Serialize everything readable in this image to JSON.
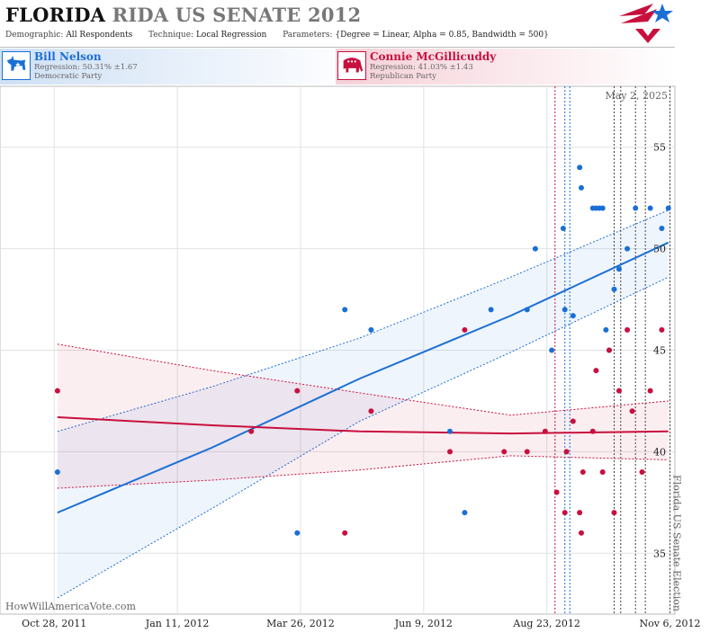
{
  "header": {
    "title_state": "FLORIDA",
    "title_rest": "RIDA US SENATE 2012",
    "demographic_label": "Demographic:",
    "demographic_value": "All Respondents",
    "technique_label": "Technique:",
    "technique_value": "Local Regression",
    "parameters_label": "Parameters:",
    "parameters_value": "{Degree = Linear, Alpha = 0.85, Bandwidth = 500}"
  },
  "candidates": {
    "dem": {
      "name": "Bill Nelson",
      "regression": "Regression: 50.31% ±1.67",
      "party": "Democratic Party",
      "color": "#1a6fd6"
    },
    "rep": {
      "name": "Connie McGillicuddy",
      "regression": "Regression: 41.03% ±1.43",
      "party": "Republican Party",
      "color": "#c8103e"
    }
  },
  "watermark": "HowWillAmericaVote.com",
  "chart_data": {
    "type": "scatter",
    "x_is_date": true,
    "xlim": [
      "2011-09-25",
      "2012-11-09"
    ],
    "ylim": [
      32,
      58
    ],
    "y_ticks": [
      35,
      40,
      45,
      50,
      55
    ],
    "x_ticks": [
      {
        "date": "2011-10-28",
        "label": "Oct 28, 2011"
      },
      {
        "date": "2012-01-11",
        "label": "Jan 11, 2012"
      },
      {
        "date": "2012-03-26",
        "label": "Mar 26, 2012"
      },
      {
        "date": "2012-06-09",
        "label": "Jun 9, 2012"
      },
      {
        "date": "2012-08-23",
        "label": "Aug 23, 2012"
      },
      {
        "date": "2012-11-06",
        "label": "Nov 6, 2012"
      }
    ],
    "annotations": [
      {
        "text": "May 2, 2025"
      },
      {
        "text": "Florida US Senate Election",
        "date": "2012-11-06"
      }
    ],
    "event_lines": [
      {
        "date": "2012-08-28",
        "color": "#c8103e"
      },
      {
        "date": "2012-09-03",
        "color": "#1a6fd6"
      },
      {
        "date": "2012-09-06",
        "color": "#1a6fd6"
      },
      {
        "date": "2012-10-03",
        "color": "#444"
      },
      {
        "date": "2012-10-07",
        "color": "#444"
      },
      {
        "date": "2012-10-16",
        "color": "#444"
      },
      {
        "date": "2012-10-22",
        "color": "#444"
      },
      {
        "date": "2012-11-06",
        "color": "#444"
      }
    ],
    "series": [
      {
        "name": "Bill Nelson",
        "color": "#1a6fd6",
        "points": [
          [
            "2011-10-30",
            39
          ],
          [
            "2012-03-24",
            36
          ],
          [
            "2012-04-22",
            47
          ],
          [
            "2012-05-08",
            46
          ],
          [
            "2012-06-25",
            41
          ],
          [
            "2012-07-04",
            37
          ],
          [
            "2012-07-20",
            47
          ],
          [
            "2012-08-11",
            47
          ],
          [
            "2012-08-16",
            50
          ],
          [
            "2012-08-26",
            45
          ],
          [
            "2012-09-02",
            51
          ],
          [
            "2012-09-03",
            47
          ],
          [
            "2012-09-08",
            46.7
          ],
          [
            "2012-09-12",
            54
          ],
          [
            "2012-09-13",
            53
          ],
          [
            "2012-09-20",
            52
          ],
          [
            "2012-09-22",
            52
          ],
          [
            "2012-09-24",
            52
          ],
          [
            "2012-09-26",
            52
          ],
          [
            "2012-09-28",
            46
          ],
          [
            "2012-09-30",
            45
          ],
          [
            "2012-10-03",
            48
          ],
          [
            "2012-10-06",
            49
          ],
          [
            "2012-10-11",
            50
          ],
          [
            "2012-10-16",
            52
          ],
          [
            "2012-10-25",
            52
          ],
          [
            "2012-11-01",
            51
          ],
          [
            "2012-11-05",
            52
          ]
        ],
        "trend": [
          [
            "2011-10-30",
            37.0
          ],
          [
            "2012-02-01",
            40.2
          ],
          [
            "2012-05-01",
            43.6
          ],
          [
            "2012-08-01",
            46.7
          ],
          [
            "2012-11-05",
            50.3
          ]
        ],
        "band_upper": [
          [
            "2011-10-30",
            41.0
          ],
          [
            "2012-02-01",
            43.2
          ],
          [
            "2012-05-01",
            45.6
          ],
          [
            "2012-08-01",
            48.6
          ],
          [
            "2012-11-05",
            51.9
          ]
        ],
        "band_lower": [
          [
            "2011-10-30",
            32.8
          ],
          [
            "2012-02-01",
            37.2
          ],
          [
            "2012-05-01",
            41.5
          ],
          [
            "2012-08-01",
            44.9
          ],
          [
            "2012-11-05",
            48.6
          ]
        ]
      },
      {
        "name": "Connie McGillicuddy",
        "color": "#c8103e",
        "points": [
          [
            "2011-10-30",
            43
          ],
          [
            "2012-02-25",
            41
          ],
          [
            "2012-03-24",
            43
          ],
          [
            "2012-04-22",
            36
          ],
          [
            "2012-05-08",
            42
          ],
          [
            "2012-06-25",
            40
          ],
          [
            "2012-07-04",
            46
          ],
          [
            "2012-07-28",
            40
          ],
          [
            "2012-08-11",
            40
          ],
          [
            "2012-08-22",
            41
          ],
          [
            "2012-08-29",
            38
          ],
          [
            "2012-09-03",
            37
          ],
          [
            "2012-09-04",
            40
          ],
          [
            "2012-09-08",
            41.5
          ],
          [
            "2012-09-12",
            37
          ],
          [
            "2012-09-13",
            36
          ],
          [
            "2012-09-14",
            39
          ],
          [
            "2012-09-20",
            41
          ],
          [
            "2012-09-22",
            44
          ],
          [
            "2012-09-26",
            39
          ],
          [
            "2012-09-30",
            45
          ],
          [
            "2012-10-03",
            37
          ],
          [
            "2012-10-06",
            43
          ],
          [
            "2012-10-11",
            46
          ],
          [
            "2012-10-14",
            42
          ],
          [
            "2012-10-20",
            39
          ],
          [
            "2012-10-25",
            43
          ],
          [
            "2012-11-01",
            46
          ]
        ],
        "trend": [
          [
            "2011-10-30",
            41.7
          ],
          [
            "2012-02-01",
            41.3
          ],
          [
            "2012-05-01",
            41.0
          ],
          [
            "2012-08-01",
            40.9
          ],
          [
            "2012-11-05",
            41.0
          ]
        ],
        "band_upper": [
          [
            "2011-10-30",
            45.3
          ],
          [
            "2012-02-01",
            44.0
          ],
          [
            "2012-05-01",
            42.9
          ],
          [
            "2012-08-01",
            41.8
          ],
          [
            "2012-11-05",
            42.5
          ]
        ],
        "band_lower": [
          [
            "2011-10-30",
            38.2
          ],
          [
            "2012-02-01",
            38.6
          ],
          [
            "2012-05-01",
            39.1
          ],
          [
            "2012-08-01",
            39.8
          ],
          [
            "2012-11-05",
            39.6
          ]
        ]
      }
    ]
  }
}
